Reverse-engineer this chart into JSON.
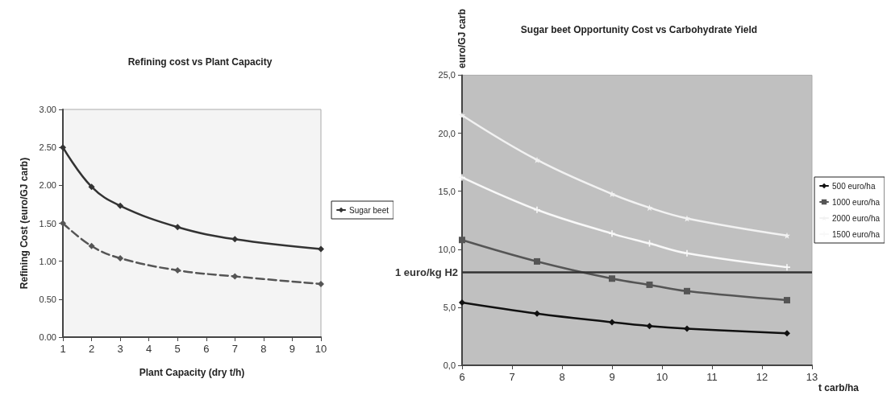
{
  "chart_data": [
    {
      "type": "line",
      "title": "Refining cost vs Plant Capacity",
      "xlabel": "Plant Capacity (dry t/h)",
      "ylabel": "Refining Cost (euro/GJ carb)",
      "x": [
        1,
        2,
        3,
        5,
        7,
        10
      ],
      "series": [
        {
          "name": "Sugar beet",
          "color": "#333333",
          "values": [
            2.5,
            1.98,
            1.73,
            1.45,
            1.29,
            1.16
          ],
          "line_style": "solid"
        },
        {
          "color": "#555555",
          "values": [
            1.5,
            1.2,
            1.04,
            0.88,
            0.8,
            0.7
          ],
          "line_style": "dashed"
        }
      ],
      "xlim": [
        1,
        10
      ],
      "xticks": [
        1,
        2,
        3,
        4,
        5,
        6,
        7,
        8,
        9,
        10
      ],
      "ylim": [
        0,
        3
      ],
      "yticks": [
        {
          "value": 0,
          "label": "0.00"
        },
        {
          "value": 0.5,
          "label": "0.50"
        },
        {
          "value": 1,
          "label": "1.00"
        },
        {
          "value": 1.5,
          "label": "1.50"
        },
        {
          "value": 2,
          "label": "2.00"
        },
        {
          "value": 2.5,
          "label": "2.50"
        },
        {
          "value": 3,
          "label": "3.00"
        }
      ],
      "marker": "diamond",
      "grid": false,
      "legend": "right"
    },
    {
      "type": "line",
      "title": "Sugar beet Opportunity Cost vs Carbohydrate Yield",
      "xlabel": "t carb/ha",
      "ylabel": "euro/GJ carb",
      "x": [
        6,
        7.5,
        9,
        9.75,
        10.5,
        12.5
      ],
      "series": [
        {
          "name": "500 euro/ha",
          "color": "#111111",
          "marker": "diamond",
          "values": [
            5.41,
            4.46,
            3.71,
            3.38,
            3.16,
            2.76
          ]
        },
        {
          "name": "1000 euro/ha",
          "color": "#555555",
          "marker": "square",
          "values": [
            10.8,
            8.95,
            7.47,
            6.94,
            6.39,
            5.61
          ]
        },
        {
          "name": "2000 euro/ha",
          "color": "#f2f2f2",
          "marker": "star",
          "values": [
            21.55,
            17.7,
            14.76,
            13.58,
            12.66,
            11.18
          ]
        },
        {
          "name": "1500 euro/ha",
          "color": "#f8f8f8",
          "marker": "cross",
          "values": [
            16.19,
            13.4,
            11.35,
            10.5,
            9.65,
            8.45
          ]
        }
      ],
      "xlim": [
        6,
        13
      ],
      "xticks": [
        6,
        7,
        8,
        9,
        10,
        11,
        12,
        13
      ],
      "ylim": [
        0,
        25
      ],
      "yticks": [
        {
          "value": 0,
          "label": "0,0"
        },
        {
          "value": 5,
          "label": "5,0"
        },
        {
          "value": 10,
          "label": "10,0"
        },
        {
          "value": 15,
          "label": "15,0"
        },
        {
          "value": 20,
          "label": "20,0"
        },
        {
          "value": 25,
          "label": "25,0"
        }
      ],
      "ref_lines": [
        {
          "axis": "y",
          "value": 8,
          "label": "1 euro/kg H2",
          "color": "#333333"
        }
      ],
      "grid": false,
      "legend": "right"
    }
  ]
}
